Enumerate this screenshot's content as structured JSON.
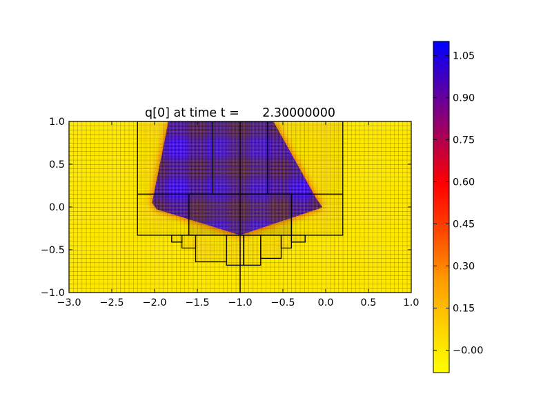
{
  "chart_data": {
    "type": "heatmap",
    "title": "q[0] at time t =      2.30000000",
    "xlabel": "",
    "ylabel": "",
    "xlim": [
      -3.0,
      1.0
    ],
    "ylim": [
      -1.0,
      1.0
    ],
    "x_ticks": [
      "−3.0",
      "−2.5",
      "−2.0",
      "−1.5",
      "−1.0",
      "−0.5",
      "0.0",
      "0.5",
      "1.0"
    ],
    "x_tick_values": [
      -3.0,
      -2.5,
      -2.0,
      -1.5,
      -1.0,
      -0.5,
      0.0,
      0.5,
      1.0
    ],
    "y_ticks": [
      "−1.0",
      "−0.5",
      "0.0",
      "0.5",
      "1.0"
    ],
    "y_tick_values": [
      -1.0,
      -0.5,
      0.0,
      0.5,
      1.0
    ],
    "colorbar": {
      "range": [
        -0.08,
        1.1
      ],
      "colors": [
        "#ffff00",
        "#ffd000",
        "#ff9900",
        "#ff4400",
        "#ff0000",
        "#aa0055",
        "#5500aa",
        "#0000ff"
      ],
      "ticks": [
        "−0.00",
        "0.15",
        "0.30",
        "0.45",
        "0.60",
        "0.75",
        "0.90",
        "1.05"
      ],
      "tick_values": [
        0.0,
        0.15,
        0.3,
        0.45,
        0.6,
        0.75,
        0.9,
        1.05
      ]
    },
    "field": {
      "background_value": 0.0,
      "peak_value": 1.0,
      "region_polygon": [
        [
          -1.83,
          1.0
        ],
        [
          -2.02,
          0.05
        ],
        [
          -1.97,
          -0.02
        ],
        [
          -1.0,
          -0.32
        ],
        [
          -0.05,
          0.0
        ],
        [
          -0.12,
          0.1
        ],
        [
          -0.62,
          1.0
        ]
      ]
    },
    "grid": {
      "coarse_spacing": 0.05,
      "patches": [
        {
          "x": [
            -2.2,
            0.2
          ],
          "y": [
            -0.33,
            1.0
          ],
          "spacing": 0.0167
        },
        {
          "x": [
            -1.32,
            -0.68
          ],
          "y": [
            0.15,
            1.0
          ],
          "spacing": 0.0083
        },
        {
          "x": [
            -1.6,
            -0.4
          ],
          "y": [
            -0.33,
            0.15
          ],
          "spacing": 0.0083
        },
        {
          "x": [
            -1.8,
            -1.68
          ],
          "y": [
            -0.41,
            -0.33
          ],
          "spacing": 0.0167
        },
        {
          "x": [
            -1.68,
            -1.52
          ],
          "y": [
            -0.48,
            -0.33
          ],
          "spacing": 0.0167
        },
        {
          "x": [
            -1.52,
            -1.16
          ],
          "y": [
            -0.64,
            -0.33
          ],
          "spacing": 0.0167
        },
        {
          "x": [
            -1.16,
            -0.96
          ],
          "y": [
            -0.68,
            -0.33
          ],
          "spacing": 0.0167
        },
        {
          "x": [
            -0.96,
            -0.76
          ],
          "y": [
            -0.68,
            -0.33
          ],
          "spacing": 0.0167
        },
        {
          "x": [
            -0.76,
            -0.52
          ],
          "y": [
            -0.6,
            -0.33
          ],
          "spacing": 0.0167
        },
        {
          "x": [
            -0.52,
            -0.4
          ],
          "y": [
            -0.48,
            -0.33
          ],
          "spacing": 0.0167
        },
        {
          "x": [
            -0.4,
            -0.24
          ],
          "y": [
            -0.41,
            -0.33
          ],
          "spacing": 0.0167
        }
      ],
      "lines": [
        [
          [
            -2.2,
            0.15
          ],
          [
            0.2,
            0.15
          ]
        ],
        [
          [
            -1.32,
            0.15
          ],
          [
            -1.32,
            1.0
          ]
        ],
        [
          [
            -0.68,
            0.15
          ],
          [
            -0.68,
            1.0
          ]
        ],
        [
          [
            -1.0,
            -1.0
          ],
          [
            -1.0,
            1.0
          ]
        ],
        [
          [
            -1.6,
            -0.33
          ],
          [
            -1.6,
            0.15
          ]
        ],
        [
          [
            -0.4,
            -0.33
          ],
          [
            -0.4,
            0.15
          ]
        ]
      ]
    }
  }
}
